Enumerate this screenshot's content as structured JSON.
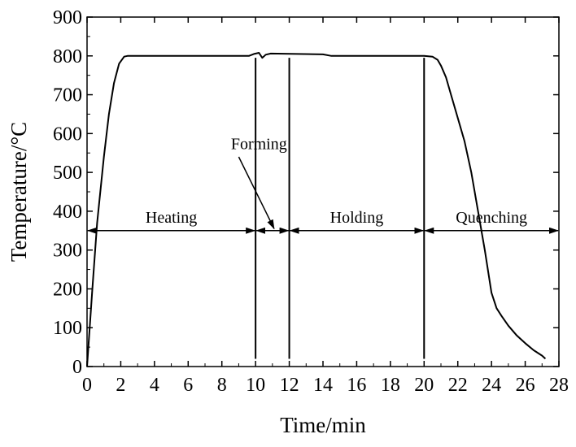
{
  "chart_data": {
    "type": "line",
    "xlabel": "Time/min",
    "ylabel": "Temperature/°C",
    "xlim": [
      0,
      28
    ],
    "ylim": [
      0,
      900
    ],
    "xticks": [
      0,
      2,
      4,
      6,
      8,
      10,
      12,
      14,
      16,
      18,
      20,
      22,
      24,
      26,
      28
    ],
    "yticks": [
      0,
      100,
      200,
      300,
      400,
      500,
      600,
      700,
      800,
      900
    ],
    "series": [
      {
        "x": [
          0,
          0.3,
          0.6,
          1.0,
          1.3,
          1.6,
          1.9,
          2.2,
          2.4,
          9.6,
          9.9,
          10.2,
          10.4,
          10.6,
          10.9,
          12.5,
          14.0,
          14.5,
          16,
          18,
          20,
          20.5,
          20.8,
          21.0,
          21.3,
          21.6,
          22.0,
          22.4,
          22.8,
          23.2,
          23.6,
          24.0,
          24.3,
          24.6,
          25.0,
          25.5,
          26.0,
          26.5,
          27.0,
          27.2
        ],
        "y": [
          0,
          190,
          370,
          540,
          650,
          730,
          780,
          798,
          800,
          800,
          805,
          808,
          795,
          803,
          806,
          805,
          804,
          800,
          800,
          800,
          800,
          798,
          790,
          775,
          745,
          700,
          640,
          580,
          500,
          400,
          300,
          190,
          150,
          130,
          105,
          80,
          60,
          42,
          28,
          20
        ]
      }
    ],
    "vlines": [
      10,
      12,
      20
    ],
    "phases": [
      {
        "label": "Heating",
        "from": 0,
        "to": 10,
        "y": 350
      },
      {
        "label": "Holding",
        "from": 12,
        "to": 20,
        "y": 350
      },
      {
        "label": "Quenching",
        "from": 20,
        "to": 28,
        "y": 350
      }
    ],
    "forming_annotation": {
      "label": "Forming",
      "text_x": 10.2,
      "text_y": 560,
      "arrow_from": [
        9.0,
        540
      ],
      "arrow_to": [
        11.1,
        355
      ],
      "span_from": 10,
      "span_to": 12,
      "span_y": 350
    }
  }
}
